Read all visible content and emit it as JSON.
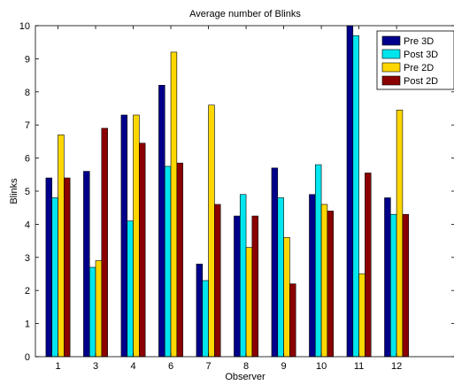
{
  "chart_data": {
    "type": "bar",
    "title": "Average number of Blinks",
    "xlabel": "Observer",
    "ylabel": "Blinks",
    "categories": [
      "1",
      "3",
      "4",
      "6",
      "7",
      "8",
      "9",
      "10",
      "11",
      "12"
    ],
    "ylim": [
      0,
      10
    ],
    "yticks": [
      0,
      1,
      2,
      3,
      4,
      5,
      6,
      7,
      8,
      9,
      10
    ],
    "grid": false,
    "legend_position": "top-right",
    "series": [
      {
        "name": "Pre 3D",
        "color": "#00008b",
        "values": [
          5.4,
          5.6,
          7.3,
          8.2,
          2.8,
          4.25,
          5.7,
          4.9,
          10.0,
          4.8
        ]
      },
      {
        "name": "Post 3D",
        "color": "#00e5ee",
        "values": [
          4.8,
          2.7,
          4.1,
          5.75,
          2.3,
          4.9,
          4.8,
          5.8,
          9.7,
          4.3
        ]
      },
      {
        "name": "Pre 2D",
        "color": "#ffd700",
        "values": [
          6.7,
          2.9,
          7.3,
          9.2,
          7.6,
          3.3,
          3.6,
          4.6,
          2.5,
          7.45
        ]
      },
      {
        "name": "Post 2D",
        "color": "#8b0000",
        "values": [
          5.4,
          6.9,
          6.45,
          5.85,
          4.6,
          4.25,
          2.2,
          4.4,
          5.55,
          4.3
        ]
      }
    ]
  }
}
